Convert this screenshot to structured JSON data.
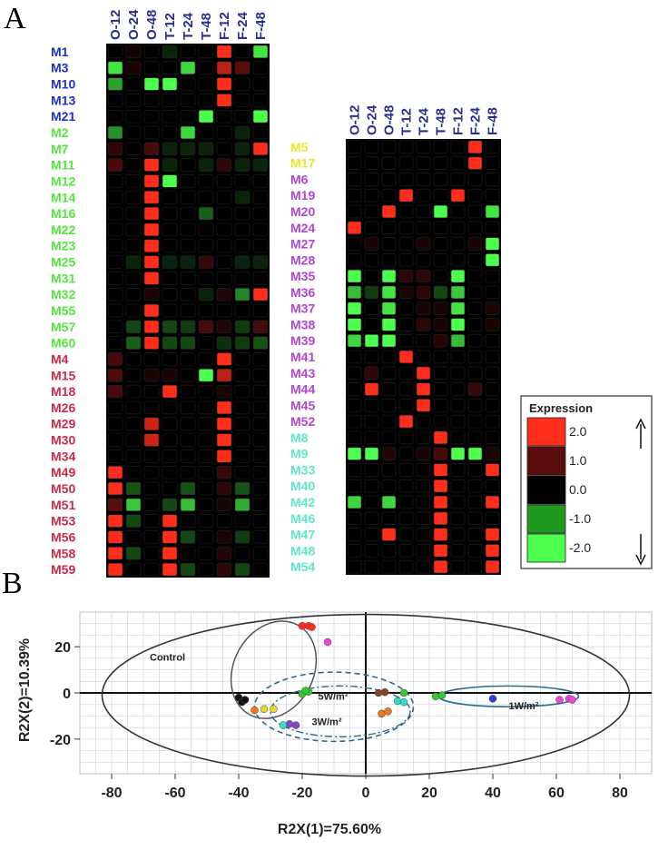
{
  "panel_labels": {
    "a": "A",
    "b": "B"
  },
  "chart_data": [
    {
      "type": "heatmap",
      "columns": [
        "O-12",
        "O-24",
        "O-48",
        "T-12",
        "T-24",
        "T-48",
        "F-12",
        "F-24",
        "F-48"
      ],
      "groups": [
        {
          "color": "#1f2fd1",
          "rows": [
            "M1",
            "M3",
            "M10",
            "M13",
            "M21"
          ]
        },
        {
          "color": "#54e63c",
          "rows": [
            "M2",
            "M7",
            "M11",
            "M12",
            "M14",
            "M16",
            "M22",
            "M23",
            "M25",
            "M31",
            "M32",
            "M55",
            "M57",
            "M60"
          ]
        },
        {
          "color": "#cc2a48",
          "rows": [
            "M4",
            "M15",
            "M18",
            "M26",
            "M29",
            "M30",
            "M34",
            "M49",
            "M50",
            "M51",
            "M53",
            "M56",
            "M58",
            "M59"
          ]
        }
      ],
      "values": [
        [
          0,
          0.2,
          0,
          -0.3,
          0,
          0,
          2,
          0,
          -1.8
        ],
        [
          -1.8,
          0.3,
          0,
          0,
          -1.7,
          0,
          1.6,
          1,
          0
        ],
        [
          -1.3,
          0,
          -2,
          -2,
          0,
          0,
          2,
          0,
          0
        ],
        [
          0,
          0,
          0,
          0,
          0,
          0,
          2,
          0,
          0
        ],
        [
          0,
          0,
          0,
          0,
          0,
          -2,
          0,
          0,
          -2
        ],
        [
          -1.2,
          0,
          0,
          0,
          -1.7,
          0,
          0,
          -0.3,
          0
        ],
        [
          0.5,
          0,
          0.8,
          -0.3,
          -0.3,
          -0.3,
          0,
          -0.3,
          2
        ],
        [
          0.8,
          0,
          2,
          -0.3,
          0,
          -0.3,
          0.5,
          -0.3,
          -0.3
        ],
        [
          0,
          0,
          2,
          -2,
          0,
          0,
          0,
          0,
          0
        ],
        [
          0,
          0,
          2,
          0,
          0,
          0,
          0,
          -0.3,
          0
        ],
        [
          0,
          0,
          2,
          0,
          0,
          -0.8,
          0,
          0,
          0
        ],
        [
          0,
          0,
          2,
          0,
          0,
          0,
          0,
          0,
          0
        ],
        [
          0,
          0,
          2,
          0,
          0,
          0,
          0,
          0,
          0
        ],
        [
          0,
          -0.3,
          2,
          -0.3,
          -0.3,
          0.6,
          0,
          -0.3,
          -0.3
        ],
        [
          0,
          0,
          2,
          0,
          0,
          0,
          0,
          0,
          0
        ],
        [
          0,
          0,
          0.3,
          0,
          0,
          -0.3,
          0.4,
          -1.1,
          2
        ],
        [
          0,
          0,
          2,
          0,
          0,
          0,
          0,
          0,
          0
        ],
        [
          0,
          -0.6,
          2,
          -0.6,
          -0.5,
          0.8,
          0.4,
          -0.5,
          0.8
        ],
        [
          0,
          -0.8,
          2,
          -0.6,
          -0.6,
          0,
          -0.4,
          -0.5,
          -0.7
        ],
        [
          0.8,
          0,
          0,
          0,
          0,
          0,
          2,
          0,
          0
        ],
        [
          0.9,
          0,
          0.3,
          0.3,
          0,
          -2,
          1.6,
          0,
          0
        ],
        [
          0.8,
          0,
          0,
          2,
          0,
          0,
          0.3,
          0,
          0
        ],
        [
          0,
          0,
          0,
          0,
          0,
          0,
          2,
          0,
          0
        ],
        [
          0,
          0,
          1.7,
          0,
          0,
          0,
          2,
          0,
          0
        ],
        [
          0,
          0,
          1.7,
          0,
          0,
          0,
          2,
          0,
          0
        ],
        [
          0,
          0,
          0,
          0,
          0,
          0,
          2,
          0,
          0
        ],
        [
          2,
          0,
          0,
          0,
          0,
          0,
          0.6,
          0,
          0
        ],
        [
          2,
          -0.7,
          0,
          0,
          -0.7,
          0,
          0.5,
          -0.7,
          0
        ],
        [
          1,
          -1.6,
          0,
          -0.6,
          -1.5,
          0,
          0.3,
          -1.4,
          0
        ],
        [
          2,
          -0.6,
          0,
          2,
          0,
          0,
          0,
          0,
          0
        ],
        [
          2,
          0,
          0,
          2,
          -0.6,
          0,
          0.3,
          -0.5,
          0
        ],
        [
          2,
          -0.6,
          0,
          2,
          0,
          0,
          0.4,
          0,
          0
        ],
        [
          2,
          0,
          0,
          2,
          -0.6,
          0,
          0.5,
          -0.6,
          0
        ]
      ]
    },
    {
      "type": "heatmap",
      "columns": [
        "O-12",
        "O-24",
        "O-48",
        "T-12",
        "T-24",
        "T-48",
        "F-12",
        "F-24",
        "F-48"
      ],
      "groups": [
        {
          "color": "#e8e826",
          "rows": [
            "M5",
            "M17"
          ]
        },
        {
          "color": "#b045d6",
          "rows": [
            "M6",
            "M19",
            "M20",
            "M24",
            "M27",
            "M28",
            "M35",
            "M36",
            "M37",
            "M38",
            "M39",
            "M41",
            "M43",
            "M44",
            "M45",
            "M52"
          ]
        },
        {
          "color": "#5ee8c8",
          "rows": [
            "M8",
            "M9",
            "M33",
            "M40",
            "M42",
            "M46",
            "M47",
            "M48",
            "M54"
          ]
        }
      ],
      "values": [
        [
          0,
          0,
          0,
          0,
          0,
          0,
          0,
          2,
          0
        ],
        [
          0,
          0,
          0,
          0,
          0,
          0,
          0,
          2,
          0
        ],
        [
          0,
          0,
          0,
          0,
          0,
          0,
          0,
          0,
          0
        ],
        [
          0,
          0,
          0,
          2,
          0,
          0,
          2,
          0,
          0
        ],
        [
          0,
          0,
          2,
          0,
          0,
          -2,
          0,
          0,
          -1.8
        ],
        [
          2,
          0,
          0,
          0,
          0,
          0,
          0,
          0,
          0
        ],
        [
          0,
          0.3,
          0,
          0,
          0.3,
          0,
          0,
          0.3,
          -2
        ],
        [
          0,
          0,
          0,
          0,
          0,
          0,
          0,
          0,
          -2
        ],
        [
          -2,
          0,
          -2,
          0.5,
          0.5,
          0,
          -2,
          0,
          0
        ],
        [
          -1.5,
          -0.5,
          -1.8,
          0.3,
          0.5,
          -0.6,
          -1.6,
          0,
          0
        ],
        [
          -2,
          0,
          -1.8,
          0,
          0.3,
          0.3,
          -1.8,
          0,
          0.3
        ],
        [
          -2,
          0,
          -2,
          0,
          0.5,
          0.3,
          -2,
          0,
          0.3
        ],
        [
          -1.7,
          -2,
          -2,
          0,
          0,
          0.4,
          -1.5,
          0,
          0
        ],
        [
          0,
          0,
          0,
          2,
          0,
          0,
          0,
          0,
          0
        ],
        [
          0,
          0.5,
          0,
          0,
          2,
          0,
          0,
          0,
          0
        ],
        [
          0,
          2,
          0,
          0,
          2,
          0,
          0,
          0.6,
          0
        ],
        [
          0,
          0,
          0,
          0,
          2,
          0,
          0,
          0,
          0
        ],
        [
          0,
          0,
          0,
          2,
          0,
          0,
          0,
          0,
          0
        ],
        [
          0,
          0,
          0,
          0,
          0,
          2,
          0,
          0,
          0
        ],
        [
          -2,
          -2,
          0.4,
          0,
          0.3,
          0.8,
          -2,
          -2,
          0.3
        ],
        [
          0,
          0,
          0,
          0,
          0,
          2,
          0,
          0,
          2
        ],
        [
          0,
          0,
          0,
          0,
          0,
          2,
          0,
          0,
          0
        ],
        [
          -1.7,
          0,
          -1.7,
          0,
          0,
          2,
          0,
          0,
          2
        ],
        [
          0,
          0,
          0,
          0,
          0,
          2,
          0,
          0,
          0
        ],
        [
          0,
          0,
          2,
          0,
          0,
          2,
          0,
          0,
          2
        ],
        [
          0,
          0,
          0,
          0,
          0,
          2,
          0,
          0,
          2
        ],
        [
          0,
          0,
          0,
          0,
          0,
          2,
          0,
          0,
          2
        ]
      ],
      "legend": {
        "title": "Expression",
        "entries": [
          {
            "label": "2.0",
            "color": "#ff2e1a"
          },
          {
            "label": "1.0",
            "color": "#5a0d0d"
          },
          {
            "label": "0.0",
            "color": "#000000"
          },
          {
            "label": "-1.0",
            "color": "#1f9a1f"
          },
          {
            "label": "-2.0",
            "color": "#4cff4c"
          }
        ]
      }
    },
    {
      "type": "scatter",
      "title": "",
      "xlabel": "R2X(1)=75.60%",
      "ylabel": "R2X(2)=10.39%",
      "xlim": [
        -90,
        90
      ],
      "ylim": [
        -35,
        35
      ],
      "xticks": [
        -80,
        -60,
        -40,
        -20,
        0,
        20,
        40,
        60,
        80
      ],
      "yticks": [
        -20,
        0,
        20
      ],
      "annotations": [
        "Control",
        "5W/m²",
        "3W/m²",
        "1W/m²"
      ],
      "series": [
        {
          "color": "#ff2a1a",
          "points": [
            [
              -20,
              29
            ],
            [
              -18,
              29
            ],
            [
              -17,
              28.5
            ]
          ]
        },
        {
          "color": "#ee44dd",
          "points": [
            [
              -12,
              22
            ],
            [
              61,
              -3
            ],
            [
              64,
              -2.5
            ],
            [
              65,
              -3
            ]
          ]
        },
        {
          "color": "#111111",
          "points": [
            [
              -40,
              -2
            ],
            [
              -39,
              -4
            ],
            [
              -38,
              -3
            ]
          ]
        },
        {
          "color": "#33cc33",
          "points": [
            [
              -20,
              -0.5
            ],
            [
              -18,
              0.5
            ],
            [
              -19,
              1
            ],
            [
              12,
              0
            ],
            [
              22,
              -1.5
            ],
            [
              24,
              -1
            ]
          ]
        },
        {
          "color": "#ee7722",
          "points": [
            [
              -35,
              -7.5
            ],
            [
              5,
              -9
            ],
            [
              7,
              -8
            ]
          ]
        },
        {
          "color": "#8844cc",
          "points": [
            [
              -24,
              -13.5
            ],
            [
              -22,
              -14
            ]
          ]
        },
        {
          "color": "#33ddcc",
          "points": [
            [
              -26,
              -14
            ],
            [
              10,
              -3.5
            ],
            [
              12,
              -4
            ]
          ]
        },
        {
          "color": "#e8d533",
          "points": [
            [
              -32,
              -7
            ],
            [
              -29,
              -7
            ]
          ]
        },
        {
          "color": "#884422",
          "points": [
            [
              4,
              0
            ],
            [
              6,
              0.3
            ]
          ]
        },
        {
          "color": "#2a3ee8",
          "points": [
            [
              40,
              -2.5
            ]
          ]
        }
      ]
    }
  ]
}
